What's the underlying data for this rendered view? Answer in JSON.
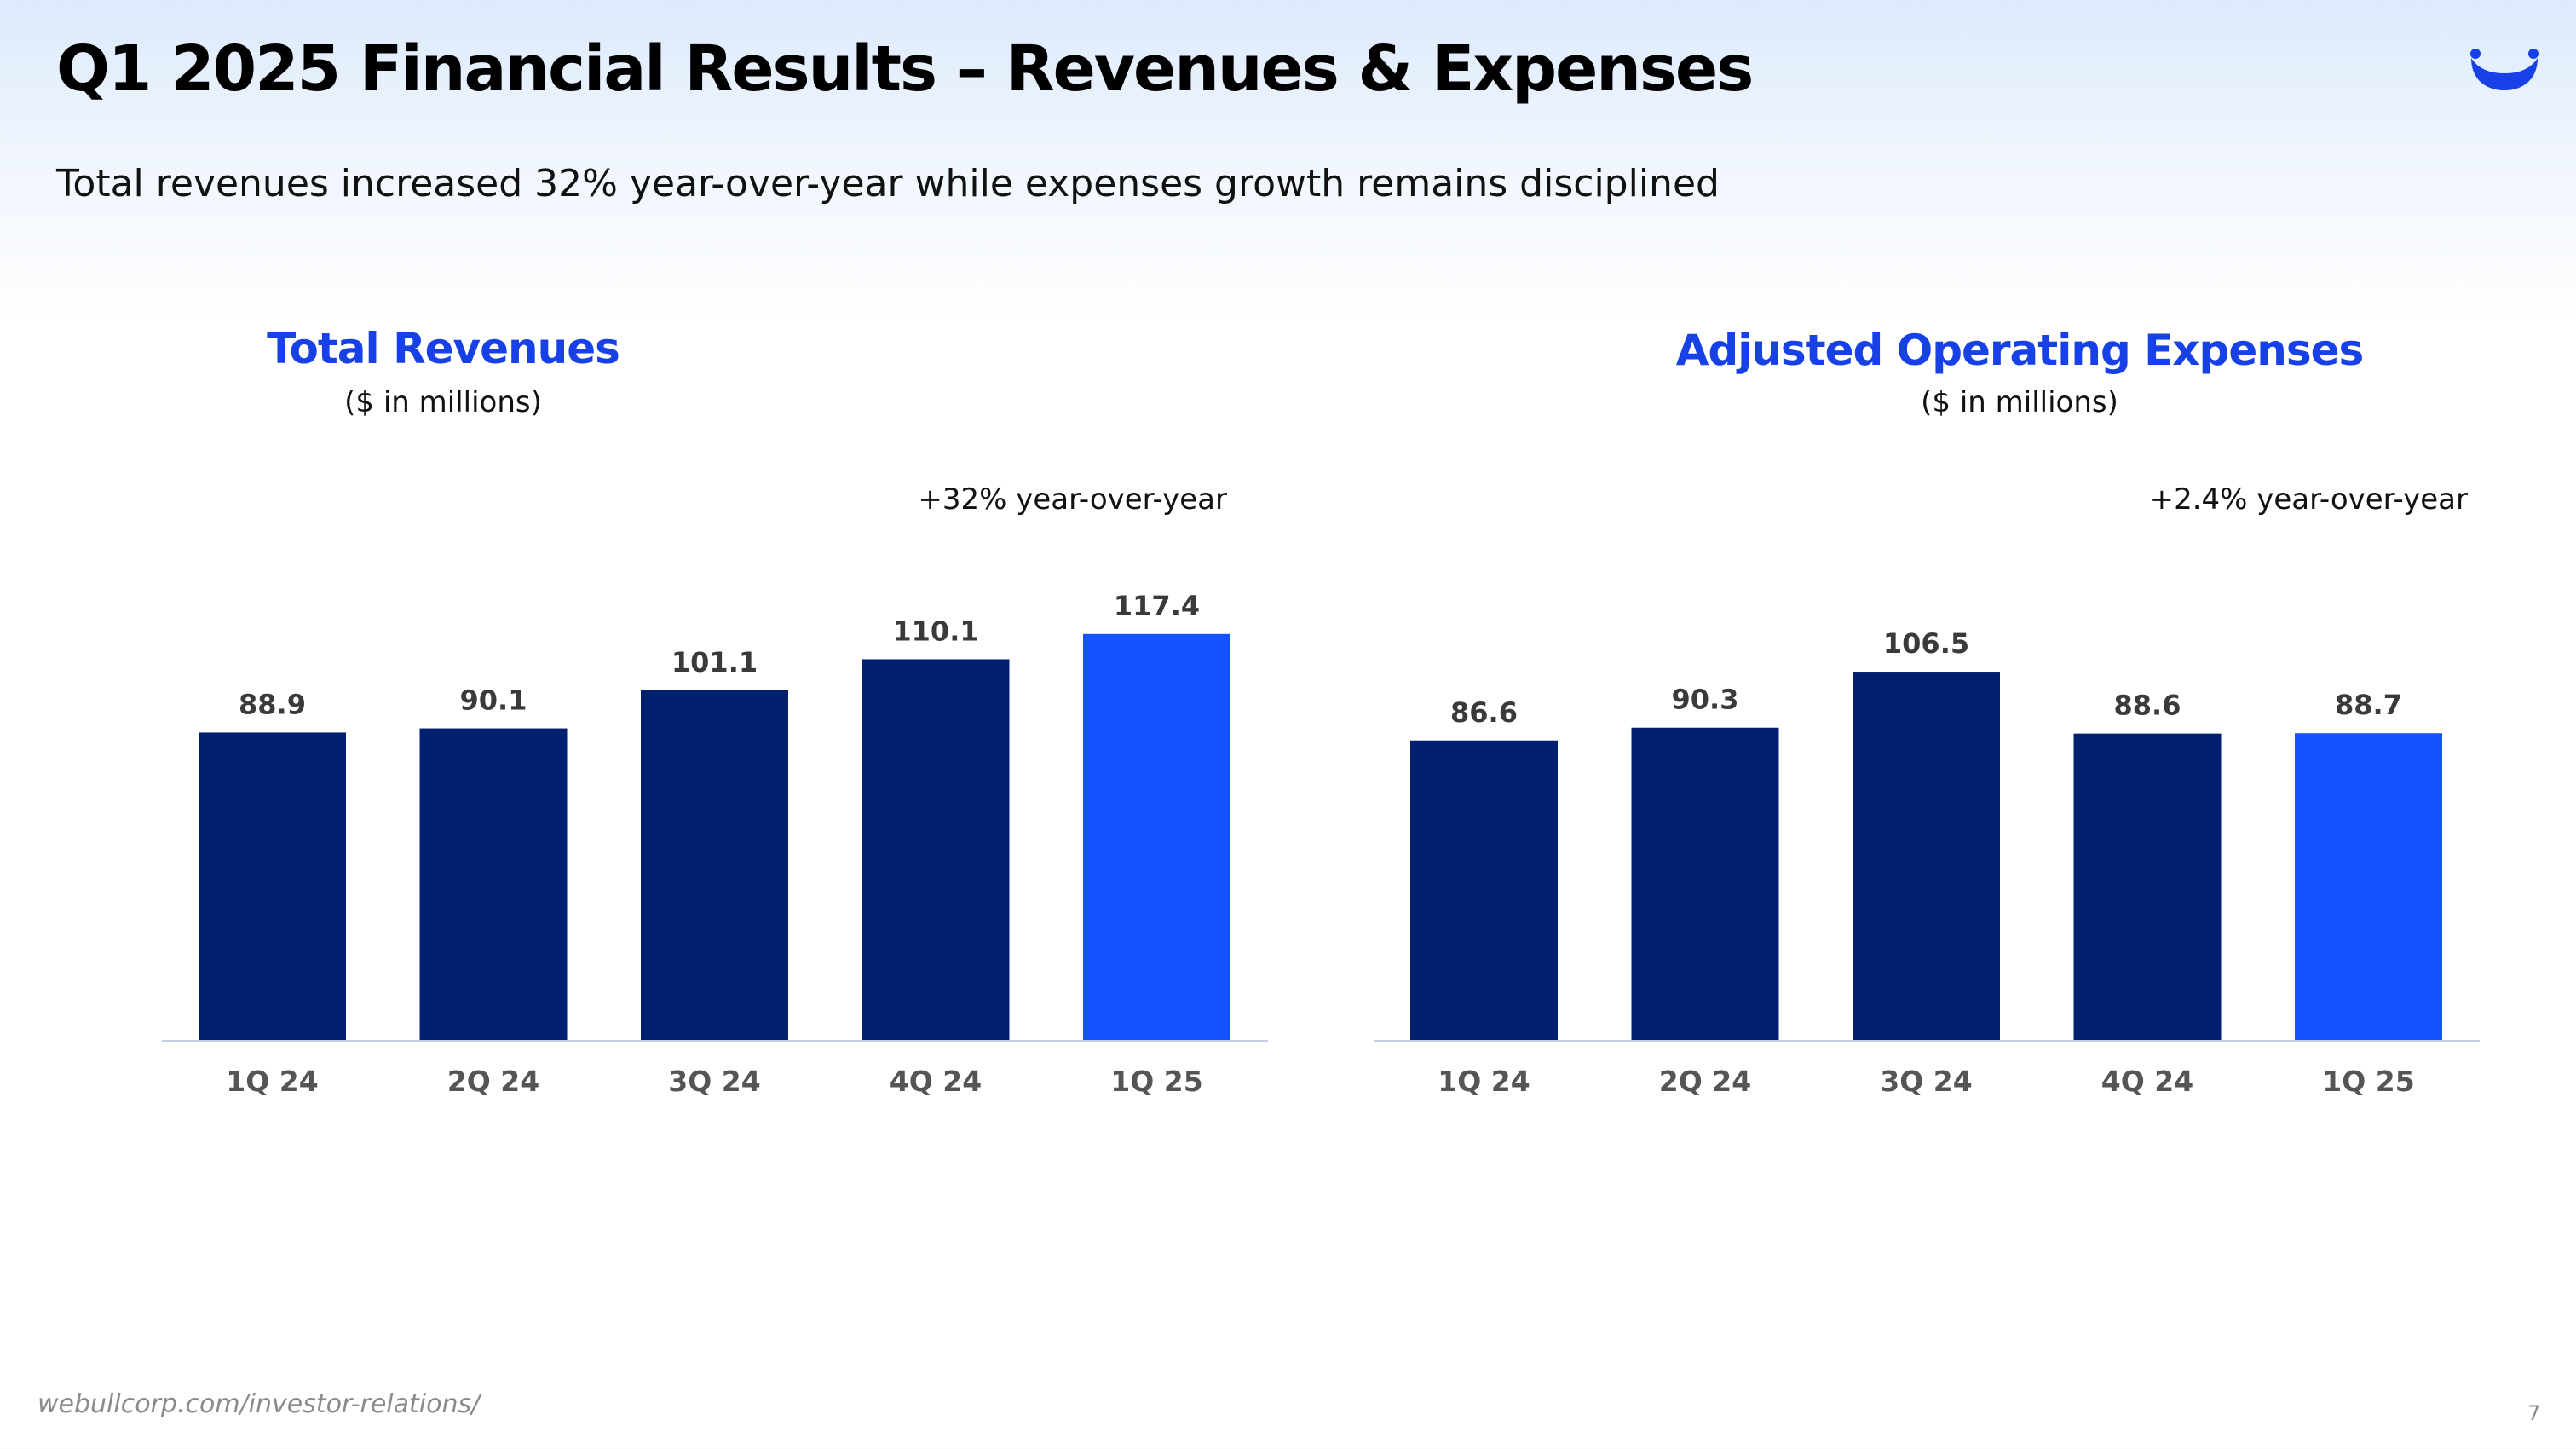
{
  "header": {
    "title": "Q1 2025 Financial Results – Revenues & Expenses",
    "subtitle": "Total revenues increased 32% year-over-year while expenses growth remains disciplined",
    "logo_icon": "webull-logo-icon"
  },
  "colors": {
    "accent_title": "#1741e6",
    "bar_dark": "#00206f",
    "bar_highlight": "#1553fe",
    "axis_line": "#c5cfe3"
  },
  "chart_data": [
    {
      "type": "bar",
      "title": "Total Revenues",
      "units": "($ in millions)",
      "annotation": "+32% year-over-year",
      "categories": [
        "1Q 24",
        "2Q 24",
        "3Q 24",
        "4Q 24",
        "1Q 25"
      ],
      "values": [
        88.9,
        90.1,
        101.1,
        110.1,
        117.4
      ],
      "value_labels": [
        "88.9",
        "90.1",
        "101.1",
        "110.1",
        "117.4"
      ],
      "highlight_index": 4,
      "xlabel": "",
      "ylabel": "",
      "ylim": [
        0,
        120
      ],
      "grid": false
    },
    {
      "type": "bar",
      "title": "Adjusted Operating Expenses",
      "units": "($ in millions)",
      "annotation": "+2.4% year-over-year",
      "categories": [
        "1Q 24",
        "2Q 24",
        "3Q 24",
        "4Q 24",
        "1Q 25"
      ],
      "values": [
        86.6,
        90.3,
        106.5,
        88.6,
        88.7
      ],
      "value_labels": [
        "86.6",
        "90.3",
        "106.5",
        "88.6",
        "88.7"
      ],
      "highlight_index": 4,
      "xlabel": "",
      "ylabel": "",
      "ylim": [
        0,
        120
      ],
      "grid": false
    }
  ],
  "footer": {
    "url": "webullcorp.com/investor-relations/",
    "page_number": "7"
  }
}
